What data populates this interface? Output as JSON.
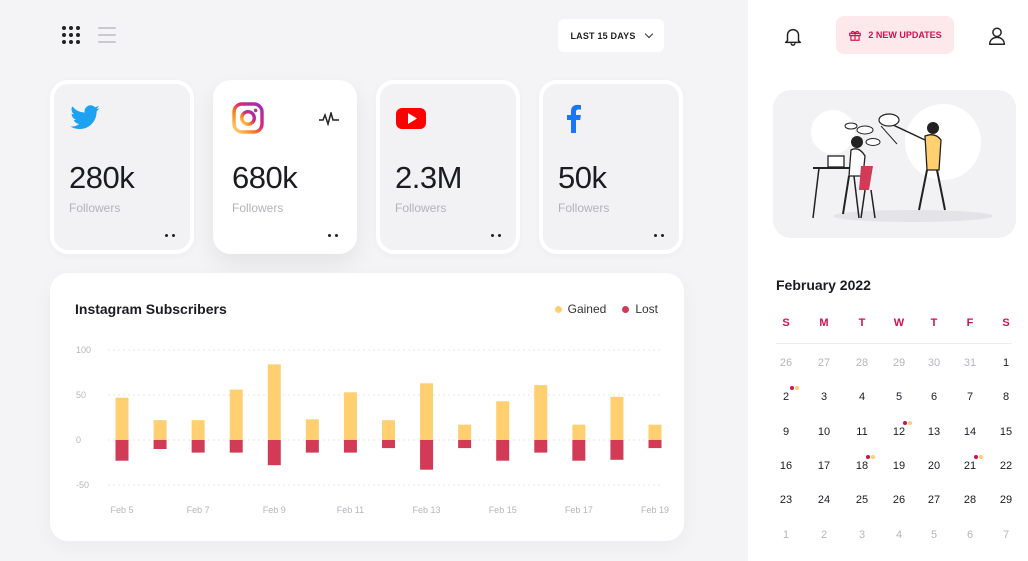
{
  "toolbar": {
    "range_label": "LAST 15 DAYS"
  },
  "cards": [
    {
      "network": "twitter",
      "icon": "twitter-icon",
      "value": "280k",
      "label": "Followers"
    },
    {
      "network": "instagram",
      "icon": "instagram-icon",
      "value": "680k",
      "label": "Followers"
    },
    {
      "network": "youtube",
      "icon": "youtube-icon",
      "value": "2.3M",
      "label": "Followers"
    },
    {
      "network": "facebook",
      "icon": "facebook-icon",
      "value": "50k",
      "label": "Followers"
    }
  ],
  "header": {
    "updates_label": "2 NEW UPDATES"
  },
  "calendar": {
    "month": "February 2022",
    "weekdays": [
      "S",
      "M",
      "T",
      "W",
      "T",
      "F",
      "S"
    ],
    "weeks": [
      [
        "26",
        "27",
        "28",
        "29",
        "30",
        "31",
        "1"
      ],
      [
        "2",
        "3",
        "4",
        "5",
        "6",
        "7",
        "8"
      ],
      [
        "9",
        "10",
        "11",
        "12",
        "13",
        "14",
        "15"
      ],
      [
        "16",
        "17",
        "18",
        "19",
        "20",
        "21",
        "22"
      ],
      [
        "23",
        "24",
        "25",
        "26",
        "27",
        "28",
        "29"
      ],
      [
        "1",
        "2",
        "3",
        "4",
        "5",
        "6",
        "7"
      ]
    ],
    "event_days": [
      "2",
      "12",
      "18",
      "21"
    ]
  },
  "colors": {
    "accent": "#d0114f",
    "gained": "#ffcf70",
    "lost": "#d23a55"
  },
  "chart_data": {
    "type": "bar",
    "title": "Instagram Subscribers",
    "legend": [
      "Gained",
      "Lost"
    ],
    "y_ticks": [
      "100",
      "50",
      "0",
      "-50"
    ],
    "ylim": [
      -50,
      100
    ],
    "x_tick_labels": [
      "Feb 5",
      "Feb 7",
      "Feb 9",
      "Feb 11",
      "Feb 13",
      "Feb 15",
      "Feb 17",
      "Feb 19"
    ],
    "categories": [
      "Feb 5",
      "Feb 6",
      "Feb 7",
      "Feb 8",
      "Feb 9",
      "Feb 10",
      "Feb 11",
      "Feb 12",
      "Feb 13",
      "Feb 14",
      "Feb 15",
      "Feb 16",
      "Feb 17",
      "Feb 18",
      "Feb 19"
    ],
    "series": [
      {
        "name": "Gained",
        "values": [
          47,
          22,
          22,
          56,
          84,
          23,
          53,
          22,
          63,
          17,
          43,
          61,
          17,
          48,
          17
        ]
      },
      {
        "name": "Lost",
        "values": [
          -23,
          -10,
          -14,
          -14,
          -28,
          -14,
          -14,
          -9,
          -33,
          -9,
          -23,
          -14,
          -23,
          -22,
          -9
        ]
      }
    ]
  }
}
